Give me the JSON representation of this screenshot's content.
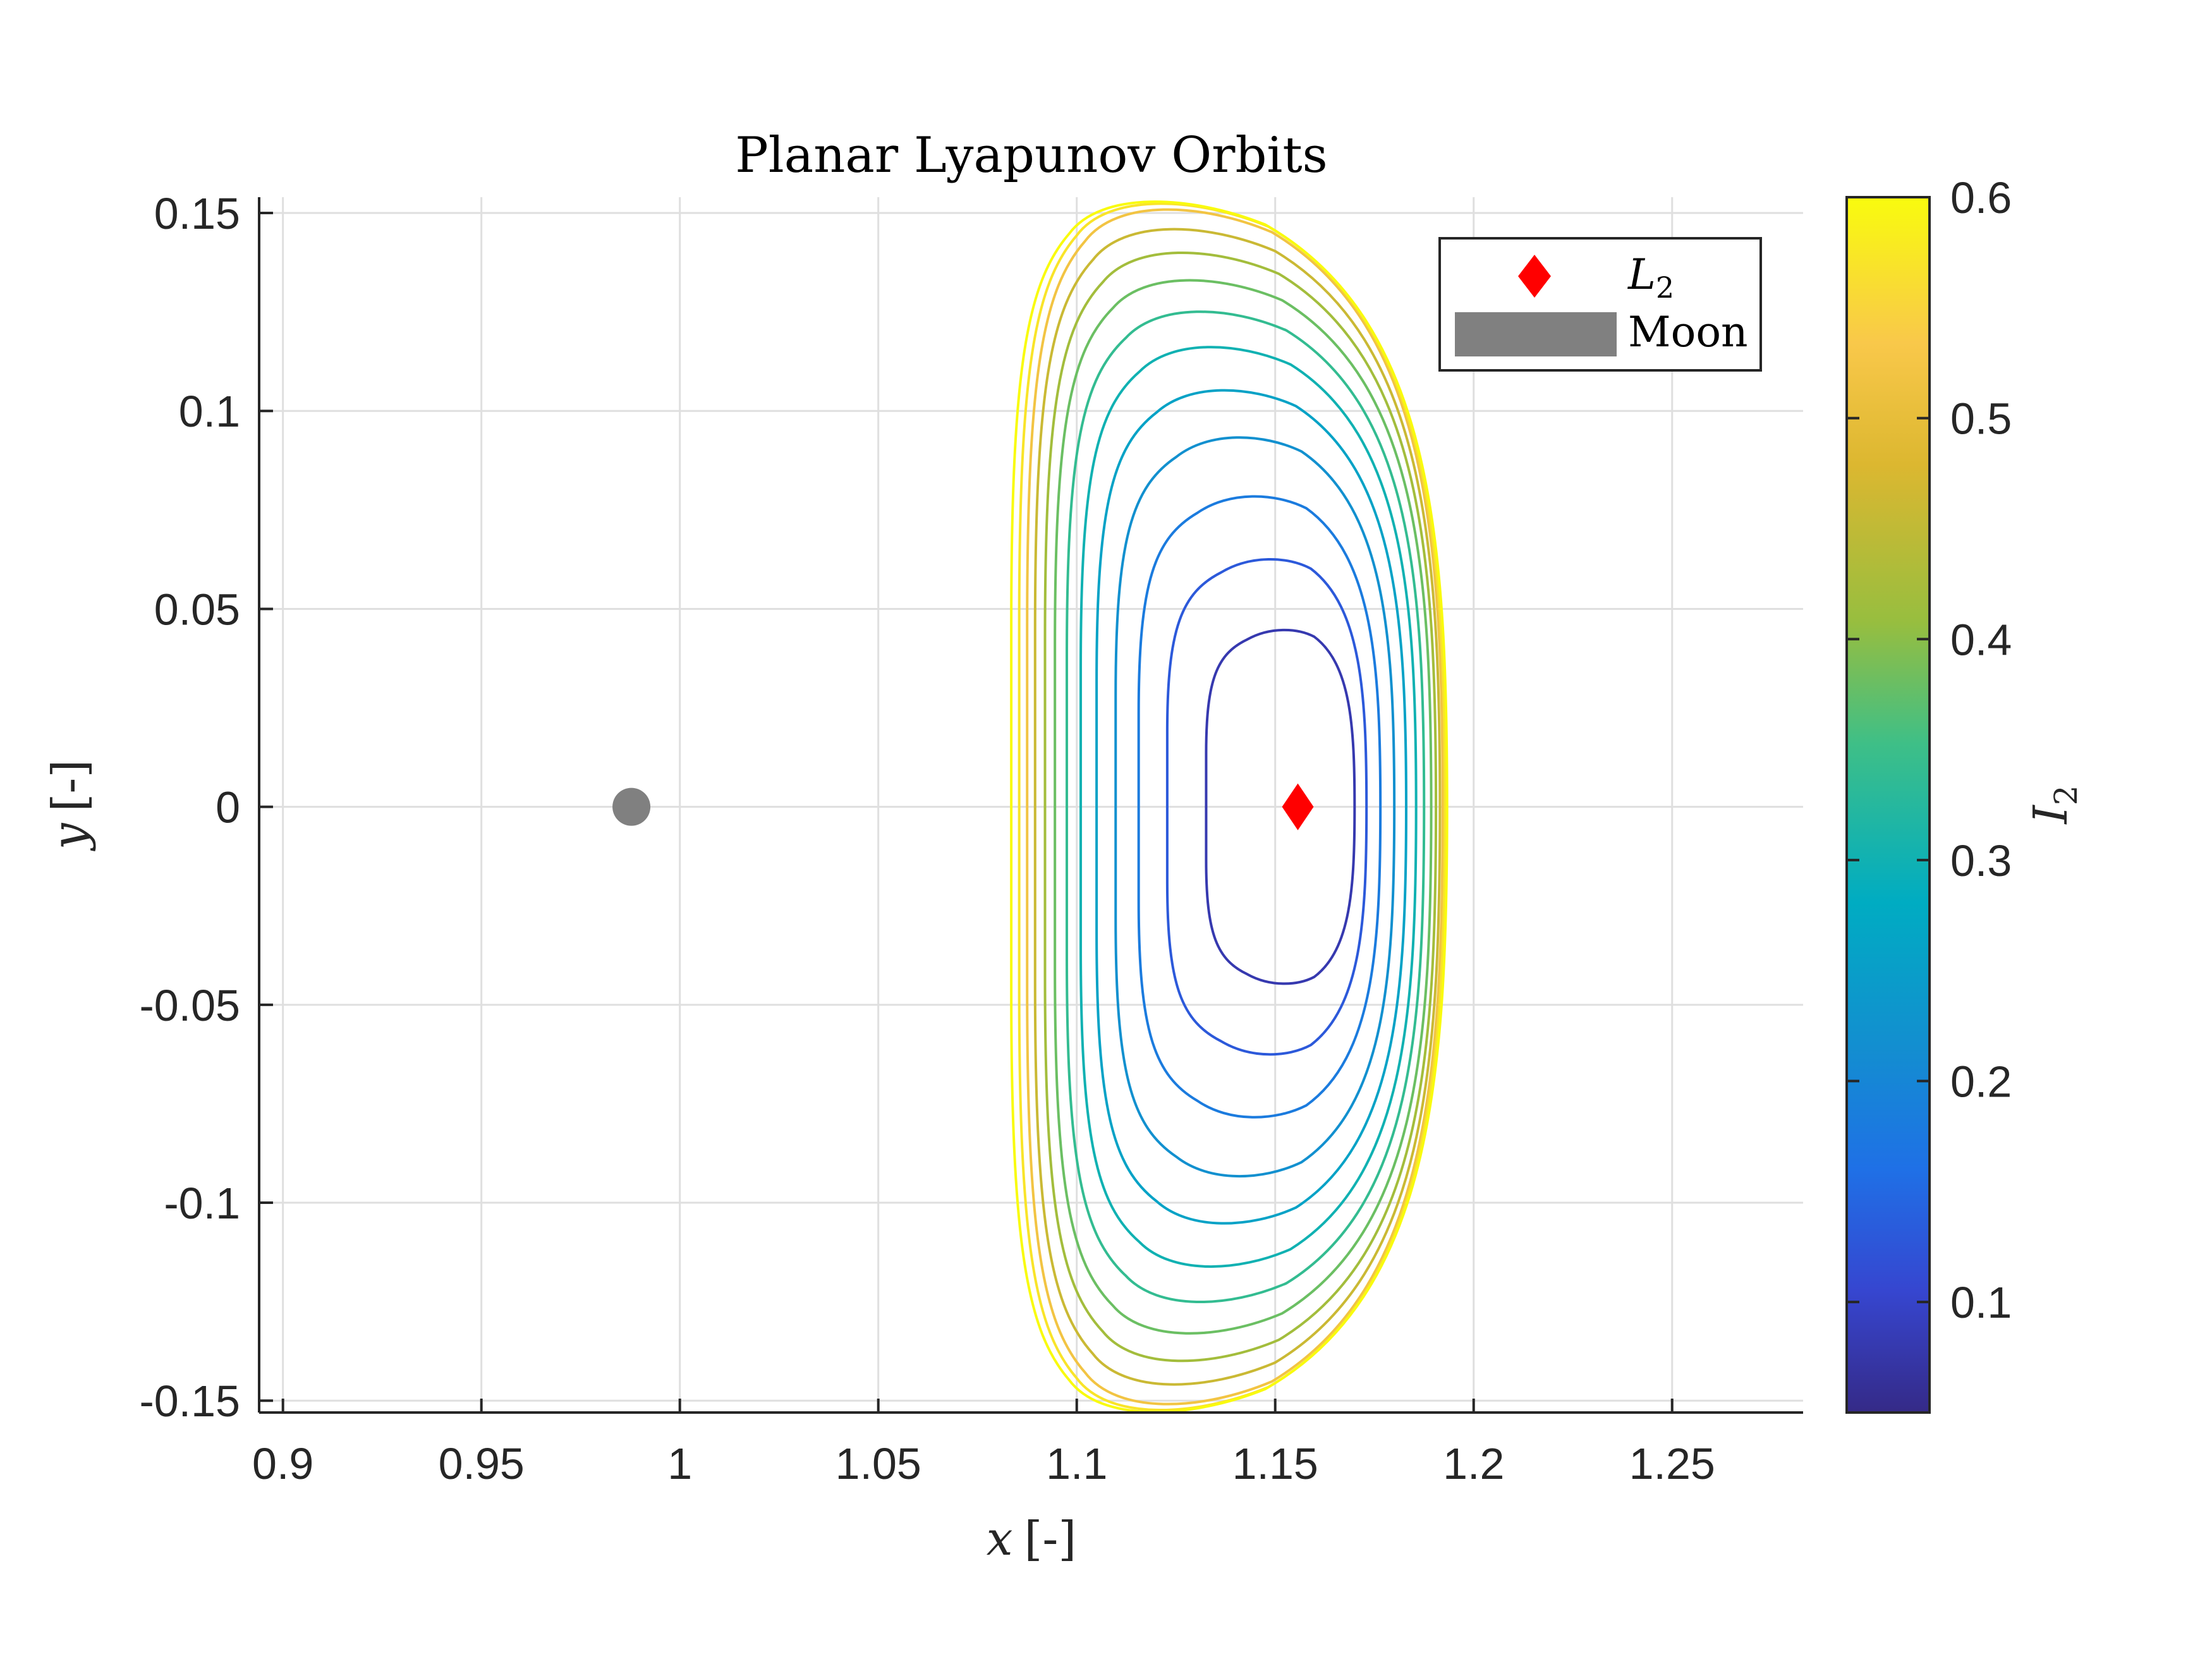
{
  "chart_data": {
    "type": "line",
    "title": "Planar Lyapunov Orbits",
    "xlabel_var": "x",
    "xlabel_unit": "[-]",
    "ylabel_var": "y",
    "ylabel_unit": "[-]",
    "xlim": [
      0.894,
      1.283
    ],
    "ylim": [
      -0.153,
      0.154
    ],
    "xticks": [
      0.9,
      0.95,
      1,
      1.05,
      1.1,
      1.15,
      1.2,
      1.25
    ],
    "xtick_labels": [
      "0.9",
      "0.95",
      "1",
      "1.05",
      "1.1",
      "1.15",
      "1.2",
      "1.25"
    ],
    "yticks": [
      -0.15,
      -0.1,
      -0.05,
      0,
      0.05,
      0.1,
      0.15
    ],
    "ytick_labels": [
      "-0.15",
      "-0.1",
      "-0.05",
      "0",
      "0.05",
      "0.1",
      "0.15"
    ],
    "grid": true,
    "legend_placement": "top-right",
    "legend": [
      {
        "label_var": "L",
        "label_sub": "2",
        "marker": "diamond",
        "color": "#ff0000"
      },
      {
        "label": "Moon",
        "marker": "patch",
        "color": "#808080"
      }
    ],
    "points": {
      "L2": {
        "x": 1.1557,
        "y": 0.0,
        "color": "#ff0000",
        "marker": "diamond"
      },
      "Moon": {
        "x": 0.9878,
        "y": 0.0,
        "color": "#808080",
        "marker": "circle"
      }
    },
    "orbits": [
      {
        "color_value": 0.08,
        "xmin": 1.1326,
        "xmax": 1.17,
        "ymax": 0.045,
        "xtop": 1.1515
      },
      {
        "color_value": 0.13,
        "xmin": 1.1228,
        "xmax": 1.173,
        "ymax": 0.063,
        "xtop": 1.1475
      },
      {
        "color_value": 0.18,
        "xmin": 1.1156,
        "xmax": 1.1765,
        "ymax": 0.079,
        "xtop": 1.1425
      },
      {
        "color_value": 0.22,
        "xmin": 1.1098,
        "xmax": 1.18,
        "ymax": 0.094,
        "xtop": 1.1375
      },
      {
        "color_value": 0.26,
        "xmin": 1.105,
        "xmax": 1.183,
        "ymax": 0.106,
        "xtop": 1.1325
      },
      {
        "color_value": 0.3,
        "xmin": 1.101,
        "xmax": 1.1855,
        "ymax": 0.117,
        "xtop": 1.128
      },
      {
        "color_value": 0.34,
        "xmin": 1.0975,
        "xmax": 1.1875,
        "ymax": 0.126,
        "xtop": 1.1245
      },
      {
        "color_value": 0.38,
        "xmin": 1.0945,
        "xmax": 1.1893,
        "ymax": 0.134,
        "xtop": 1.121
      },
      {
        "color_value": 0.42,
        "xmin": 1.092,
        "xmax": 1.1905,
        "ymax": 0.141,
        "xtop": 1.1185
      },
      {
        "color_value": 0.46,
        "xmin": 1.0895,
        "xmax": 1.1915,
        "ymax": 0.147,
        "xtop": 1.116
      },
      {
        "color_value": 0.52,
        "xmin": 1.0875,
        "xmax": 1.1922,
        "ymax": 0.152,
        "xtop": 1.114
      },
      {
        "color_value": 0.57,
        "xmin": 1.0855,
        "xmax": 1.1928,
        "ymax": 0.1535,
        "xtop": 1.1118
      },
      {
        "color_value": 0.6,
        "xmin": 1.0835,
        "xmax": 1.1933,
        "ymax": 0.154,
        "xtop": 1.11
      }
    ],
    "colorbar": {
      "label_var": "I",
      "label_sub": "2",
      "lim": [
        0.05,
        0.6
      ],
      "ticks": [
        0.1,
        0.2,
        0.3,
        0.4,
        0.5,
        0.6
      ],
      "tick_labels": [
        "0.1",
        "0.2",
        "0.3",
        "0.4",
        "0.5",
        "0.6"
      ],
      "colormap": "parula"
    }
  }
}
